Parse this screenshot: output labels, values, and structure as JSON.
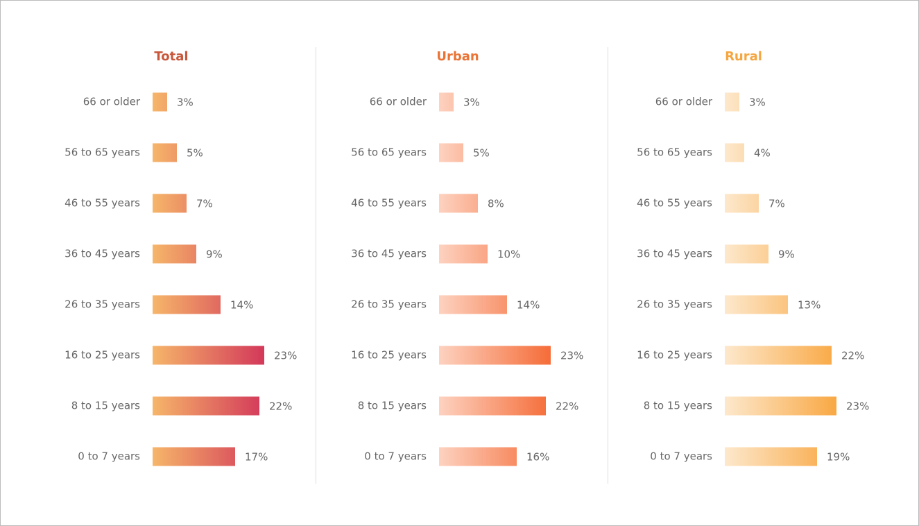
{
  "chart_data": [
    {
      "type": "bar",
      "title": "Total",
      "title_color": "#c9573b",
      "categories": [
        "66 or older",
        "56 to 65 years",
        "46 to 55 years",
        "36 to 45 years",
        "26 to 35 years",
        "16 to 25 years",
        "8 to 15 years",
        "0 to 7 years"
      ],
      "values": [
        3,
        5,
        7,
        9,
        14,
        23,
        22,
        17
      ],
      "value_labels": [
        "3%",
        "5%",
        "7%",
        "9%",
        "14%",
        "23%",
        "22%",
        "17%"
      ],
      "colors": [
        "#f6b66a",
        "#d3385a"
      ]
    },
    {
      "type": "bar",
      "title": "Urban",
      "title_color": "#ea7436",
      "categories": [
        "66 or older",
        "56 to 65 years",
        "46 to 55 years",
        "36 to 45 years",
        "26 to 35 years",
        "16 to 25 years",
        "8 to 15 years",
        "0 to 7 years"
      ],
      "values": [
        3,
        5,
        8,
        10,
        14,
        23,
        22,
        16
      ],
      "value_labels": [
        "3%",
        "5%",
        "8%",
        "10%",
        "14%",
        "23%",
        "22%",
        "16%"
      ],
      "colors": [
        "#fdd2c0",
        "#f56c38"
      ]
    },
    {
      "type": "bar",
      "title": "Rural",
      "title_color": "#f5a641",
      "categories": [
        "66 or older",
        "56 to 65 years",
        "46 to 55 years",
        "36 to 45 years",
        "26 to 35 years",
        "16 to 25 years",
        "8 to 15 years",
        "0 to 7 years"
      ],
      "values": [
        3,
        4,
        7,
        9,
        13,
        22,
        23,
        19
      ],
      "value_labels": [
        "3%",
        "4%",
        "7%",
        "9%",
        "13%",
        "22%",
        "23%",
        "19%"
      ],
      "colors": [
        "#fde8cc",
        "#f9a844"
      ]
    }
  ]
}
